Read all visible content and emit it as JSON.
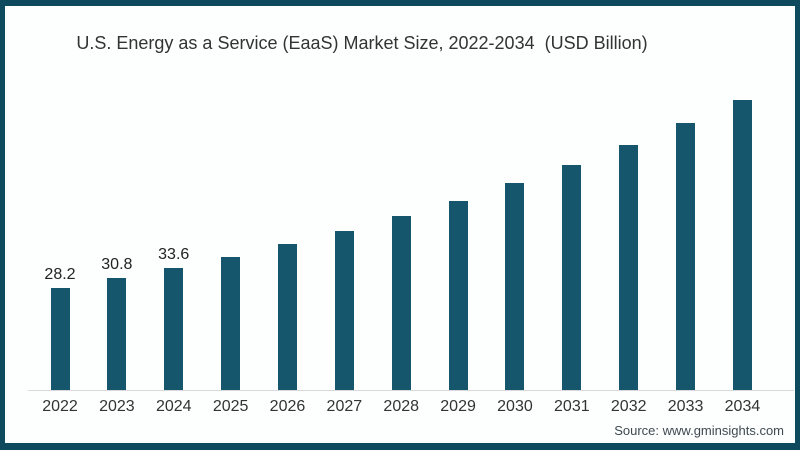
{
  "chart_data": {
    "type": "bar",
    "title": "U.S. Energy as a Service (EaaS) Market Size, 2022-2034  (USD Billion)",
    "xlabel": "",
    "ylabel": "",
    "categories": [
      "2022",
      "2023",
      "2024",
      "2025",
      "2026",
      "2027",
      "2028",
      "2029",
      "2030",
      "2031",
      "2032",
      "2033",
      "2034"
    ],
    "values": [
      28.2,
      30.8,
      33.6,
      36.6,
      40.1,
      43.8,
      48.0,
      52.1,
      56.9,
      62.0,
      67.4,
      73.4,
      79.8
    ],
    "data_labels": [
      "28.2",
      "30.8",
      "33.6",
      "",
      "",
      "",
      "",
      "",
      "",
      "",
      "",
      "",
      ""
    ],
    "ylim": [
      0,
      85
    ],
    "grid": false,
    "legend": false,
    "axis_visible": "x-baseline-only"
  },
  "colors": {
    "bar_fill": "#15566C",
    "frame_border": "#0E4A5E",
    "axis_line": "#D9D9D9",
    "background": "#FDFEFE"
  },
  "footer": {
    "source": "Source: www.gminsights.com"
  }
}
